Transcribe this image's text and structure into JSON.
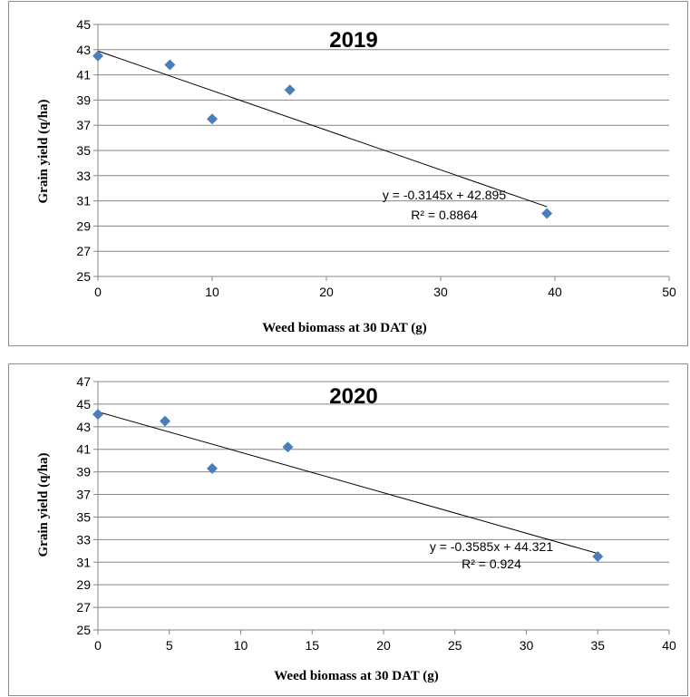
{
  "chart_data": [
    {
      "type": "scatter",
      "title": "2019",
      "xlabel": "Weed biomass at 30 DAT (g)",
      "ylabel": "Grain yield (q/ha)",
      "xlim": [
        0,
        50
      ],
      "ylim": [
        25,
        45
      ],
      "xticks": [
        0,
        10,
        20,
        30,
        40,
        50
      ],
      "yticks": [
        25,
        27,
        29,
        31,
        33,
        35,
        37,
        39,
        41,
        43,
        45
      ],
      "grid": "horizontal",
      "marker": "diamond",
      "marker_color": "#4a7ebb",
      "points": [
        {
          "x": 0,
          "y": 42.5
        },
        {
          "x": 6.3,
          "y": 41.8
        },
        {
          "x": 10.0,
          "y": 37.5
        },
        {
          "x": 16.8,
          "y": 39.8
        },
        {
          "x": 39.3,
          "y": 30.0
        }
      ],
      "trendline": {
        "type": "linear",
        "slope": -0.3145,
        "intercept": 42.895,
        "x_range": [
          0,
          39.3
        ]
      },
      "equation": "y = -0.3145x + 42.895",
      "r_squared": "R² = 0.8864"
    },
    {
      "type": "scatter",
      "title": "2020",
      "xlabel": "Weed  biomass at 30 DAT (g)",
      "ylabel": "Grain yield (q/ha)",
      "xlim": [
        0,
        40
      ],
      "ylim": [
        25,
        47
      ],
      "xticks": [
        0,
        5,
        10,
        15,
        20,
        25,
        30,
        35,
        40
      ],
      "yticks": [
        25,
        27,
        29,
        31,
        33,
        35,
        37,
        39,
        41,
        43,
        45,
        47
      ],
      "grid": "horizontal",
      "marker": "diamond",
      "marker_color": "#4a7ebb",
      "points": [
        {
          "x": 0,
          "y": 44.1
        },
        {
          "x": 4.7,
          "y": 43.5
        },
        {
          "x": 8.0,
          "y": 39.3
        },
        {
          "x": 13.3,
          "y": 41.2
        },
        {
          "x": 35.0,
          "y": 31.5
        }
      ],
      "trendline": {
        "type": "linear",
        "slope": -0.3585,
        "intercept": 44.321,
        "x_range": [
          0,
          35
        ]
      },
      "equation": "y = -0.3585x + 44.321",
      "r_squared": "R² = 0.924"
    }
  ]
}
